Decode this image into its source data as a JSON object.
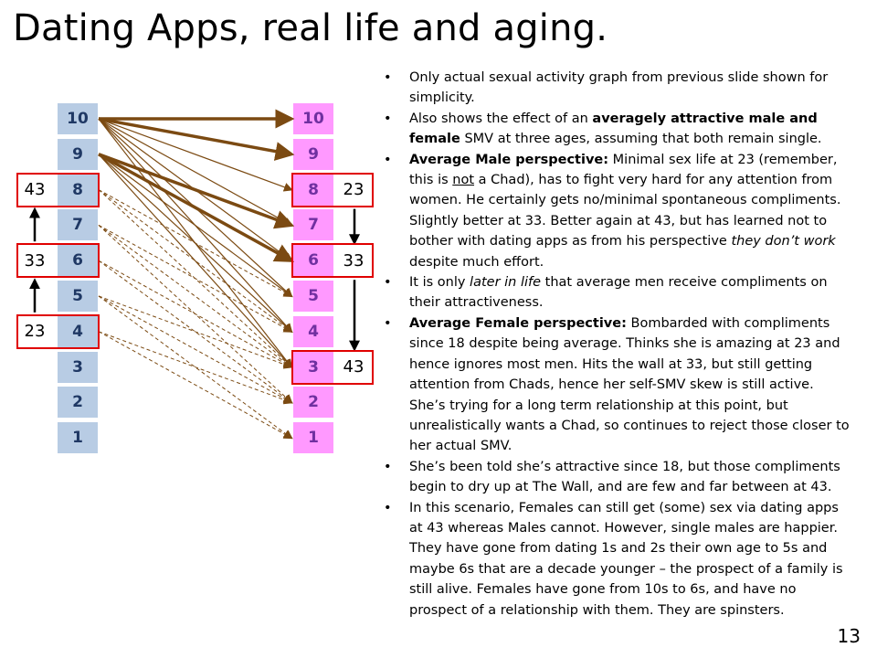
{
  "title": "Dating Apps, real life and aging.",
  "slide_number": "13",
  "scale": {
    "male_levels": [
      "10",
      "9",
      "8",
      "7",
      "6",
      "5",
      "4",
      "3",
      "2",
      "1"
    ],
    "female_levels": [
      "10",
      "9",
      "8",
      "7",
      "6",
      "5",
      "4",
      "3",
      "2",
      "1"
    ]
  },
  "male_ages": [
    {
      "age": "43",
      "level": "8"
    },
    {
      "age": "33",
      "level": "6"
    },
    {
      "age": "23",
      "level": "4"
    }
  ],
  "female_ages": [
    {
      "age": "23",
      "level": "8"
    },
    {
      "age": "33",
      "level": "6"
    },
    {
      "age": "43",
      "level": "3"
    }
  ],
  "connections": [
    {
      "from": 10,
      "to": 10,
      "style": "thick"
    },
    {
      "from": 10,
      "to": 9,
      "style": "thick"
    },
    {
      "from": 10,
      "to": 8,
      "style": "medium"
    },
    {
      "from": 10,
      "to": 7,
      "style": "medium"
    },
    {
      "from": 10,
      "to": 6,
      "style": "medium"
    },
    {
      "from": 10,
      "to": 5,
      "style": "medium"
    },
    {
      "from": 10,
      "to": 4,
      "style": "medium"
    },
    {
      "from": 10,
      "to": 3,
      "style": "medium"
    },
    {
      "from": 9,
      "to": 7,
      "style": "thick"
    },
    {
      "from": 9,
      "to": 6,
      "style": "thick"
    },
    {
      "from": 9,
      "to": 5,
      "style": "medium"
    },
    {
      "from": 9,
      "to": 4,
      "style": "medium"
    },
    {
      "from": 9,
      "to": 3,
      "style": "medium"
    },
    {
      "from": 8,
      "to": 5,
      "style": "dashed"
    },
    {
      "from": 8,
      "to": 4,
      "style": "dashed"
    },
    {
      "from": 8,
      "to": 3,
      "style": "dashed"
    },
    {
      "from": 7,
      "to": 4,
      "style": "dashed"
    },
    {
      "from": 7,
      "to": 3,
      "style": "dashed"
    },
    {
      "from": 7,
      "to": 2,
      "style": "dashed"
    },
    {
      "from": 6,
      "to": 3,
      "style": "dashed"
    },
    {
      "from": 6,
      "to": 2,
      "style": "dashed"
    },
    {
      "from": 5,
      "to": 3,
      "style": "dashed"
    },
    {
      "from": 5,
      "to": 2,
      "style": "dashed"
    },
    {
      "from": 5,
      "to": 1,
      "style": "dashed"
    },
    {
      "from": 4,
      "to": 2,
      "style": "dashed"
    },
    {
      "from": 4,
      "to": 1,
      "style": "dashed"
    }
  ],
  "bullets": [
    [
      {
        "t": "Only actual sexual activity graph from previous slide shown for simplicity."
      }
    ],
    [
      {
        "t": "Also shows the effect of an "
      },
      {
        "t": "averagely attractive male and female",
        "s": "b"
      },
      {
        "t": " SMV at three ages, assuming that both remain single."
      }
    ],
    [
      {
        "t": "Average Male perspective:",
        "s": "b"
      },
      {
        "t": " Minimal sex life at 23 (remember, this is "
      },
      {
        "t": "not",
        "s": "u"
      },
      {
        "t": " a Chad), has to fight very hard for any attention from women. He certainly gets no/minimal spontaneous compliments. Slightly better at 33. Better again at 43, but has learned not to bother with dating apps as from his perspective "
      },
      {
        "t": "they don’t work",
        "s": "i"
      },
      {
        "t": " despite much effort."
      }
    ],
    [
      {
        "t": "It is only "
      },
      {
        "t": "later in life",
        "s": "i"
      },
      {
        "t": " that average men receive compliments on their attractiveness."
      }
    ],
    [
      {
        "t": "Average Female perspective:",
        "s": "b"
      },
      {
        "t": " Bombarded with compliments since 18 despite being average. Thinks she is amazing at 23 and hence ignores most men. Hits the wall at 33, but still getting attention from Chads, hence her self-SMV skew is still active. She’s trying for a long term relationship at this point, but unrealistically wants a Chad, so continues to reject those closer to her actual SMV."
      }
    ],
    [
      {
        "t": "She’s been told she’s attractive since 18, but those compliments begin to dry up at The Wall, and are few and far between at 43."
      }
    ],
    [
      {
        "t": "In this scenario, Females can still get (some) sex via dating apps at 43 whereas Males cannot. However, single males are happier. They have gone from dating 1s and 2s their own age to 5s and maybe 6s that are a decade younger – the prospect of a family is still alive. Females have gone from 10s to 6s, and have no prospect of a relationship with them. They are spinsters."
      }
    ]
  ],
  "colors": {
    "male_cell": "#b8cce4",
    "male_text": "#1f3864",
    "female_cell": "#ff99ff",
    "female_text": "#7030a0",
    "highlight_box": "#e00000",
    "connection": "#7b4a12"
  }
}
